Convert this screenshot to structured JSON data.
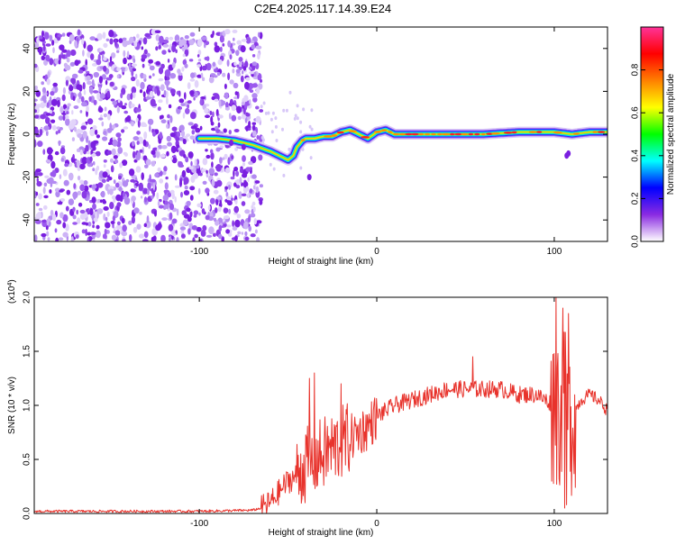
{
  "title": "C2E4.2025.117.14.39.E24",
  "chart_data": [
    {
      "type": "heatmap",
      "xlabel": "Height of straight line (km)",
      "ylabel": "Frequency (Hz)",
      "xlim": [
        -193,
        130
      ],
      "ylim": [
        -50,
        50
      ],
      "xticks": [
        -100,
        0,
        100
      ],
      "xtick_labels": [
        "-100",
        "0",
        "100"
      ],
      "yticks": [
        -40,
        -20,
        0,
        20,
        40
      ],
      "ytick_labels": [
        "-40",
        "-20",
        "0",
        "20",
        "40"
      ],
      "grid": false,
      "noise_region": {
        "x": [
          -193,
          -65
        ],
        "y": [
          -50,
          48
        ]
      },
      "ridge": {
        "x": [
          -100,
          -90,
          -80,
          -70,
          -60,
          -55,
          -50,
          -47,
          -45,
          -42,
          -40,
          -35,
          -30,
          -25,
          -20,
          -15,
          -10,
          -5,
          0,
          5,
          10,
          20,
          40,
          60,
          80,
          100,
          110,
          120,
          130
        ],
        "y": [
          -2,
          -2,
          -3,
          -5,
          -8,
          -10,
          -12,
          -10,
          -6,
          -3,
          -2,
          -2,
          -1,
          -1,
          1,
          2,
          0,
          -2,
          1,
          2,
          0,
          0,
          0,
          0,
          1,
          1,
          0,
          1,
          1
        ]
      },
      "colorbar": {
        "label": "Normalized spectral amplitude",
        "range": [
          0,
          1
        ],
        "ticks": [
          0.0,
          0.2,
          0.4,
          0.6,
          0.8
        ],
        "tick_labels": [
          "0.0",
          "0.2",
          "0.4",
          "0.6",
          "0.8"
        ],
        "colors": [
          "#ffffff",
          "#8a2be2",
          "#0000ff",
          "#00ffff",
          "#00ff00",
          "#ffff00",
          "#ff8000",
          "#ff0000",
          "#ff3399"
        ]
      }
    },
    {
      "type": "line",
      "xlabel": "Height of straight line (km)",
      "ylabel": "SNR (10 * v/v)",
      "multiplier_label": "(x10",
      "multiplier_exp": "4",
      "multiplier_close": ")",
      "xlim": [
        -193,
        130
      ],
      "ylim": [
        0,
        2.0
      ],
      "xticks": [
        -100,
        0,
        100
      ],
      "xtick_labels": [
        "-100",
        "0",
        "100"
      ],
      "yticks": [
        0,
        0.5,
        1.0,
        1.5,
        2.0
      ],
      "ytick_labels": [
        "0.0",
        "0.5",
        "1.0",
        "1.5",
        "2.0"
      ],
      "color": "#e8332c",
      "envelope": {
        "x": [
          -193,
          -100,
          -70,
          -65,
          -60,
          -55,
          -50,
          -45,
          -40,
          -35,
          -30,
          -25,
          -20,
          -15,
          -10,
          -5,
          0,
          10,
          20,
          30,
          40,
          50,
          60,
          70,
          80,
          90,
          95,
          100,
          105,
          110,
          115,
          120,
          125,
          130
        ],
        "y": [
          0.02,
          0.02,
          0.03,
          0.05,
          0.1,
          0.2,
          0.3,
          0.35,
          0.45,
          0.5,
          0.55,
          0.6,
          0.65,
          0.7,
          0.75,
          0.8,
          0.9,
          1.0,
          1.05,
          1.1,
          1.15,
          1.15,
          1.15,
          1.15,
          1.1,
          1.1,
          1.05,
          1.0,
          0.95,
          0.9,
          1.05,
          1.1,
          1.05,
          0.95
        ]
      },
      "spikes": [
        {
          "x": -38,
          "y": 1.25
        },
        {
          "x": -35,
          "y": 1.3
        },
        {
          "x": -20,
          "y": 1.2
        },
        {
          "x": 54,
          "y": 1.45
        },
        {
          "x": 101,
          "y": 2.0
        },
        {
          "x": 105,
          "y": 1.9
        },
        {
          "x": 108,
          "y": 1.85
        },
        {
          "x": 106,
          "y": 0.05
        },
        {
          "x": 107,
          "y": 0.08
        }
      ]
    }
  ]
}
